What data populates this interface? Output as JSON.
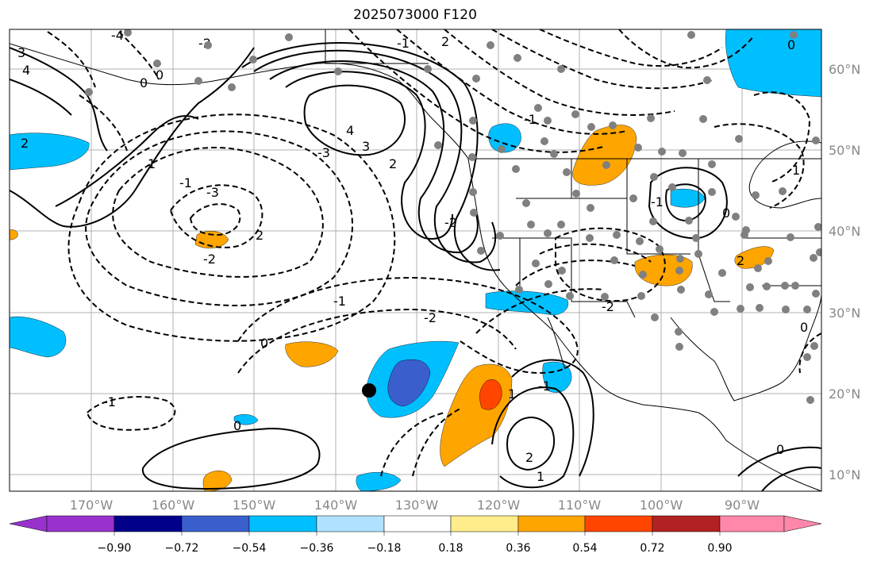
{
  "title": "2025073000 F120",
  "map": {
    "extent_lon": [
      -180,
      -80
    ],
    "extent_lat": [
      8,
      65
    ],
    "lat_labels": [
      "10°N",
      "20°N",
      "30°N",
      "40°N",
      "50°N",
      "60°N"
    ],
    "lon_labels": [
      "170°W",
      "160°W",
      "150°W",
      "140°W",
      "130°W",
      "120°W",
      "110°W",
      "100°W",
      "90°W"
    ],
    "contour_labels": [
      "3",
      "4",
      "0",
      "2",
      "1",
      "-1",
      "-2",
      "-3",
      "-4",
      "4",
      "3",
      "2",
      "-2",
      "-1",
      "0",
      "-3",
      "2",
      "-2",
      "-1",
      "0",
      "1",
      "2",
      "-2",
      "-1",
      "0",
      "1",
      "-1",
      "0",
      "-2",
      "-1",
      "0",
      "0",
      "2",
      "2",
      "-1",
      "0",
      "1"
    ],
    "station_marker_color": "#808080",
    "storm_marker_color": "#000000"
  },
  "colorbar": {
    "ticks": [
      "−0.90",
      "−0.72",
      "−0.54",
      "−0.36",
      "−0.18",
      "0.18",
      "0.36",
      "0.54",
      "0.72",
      "0.90"
    ],
    "colors": [
      "#9932cc",
      "#00008b",
      "#3a5fcd",
      "#00bfff",
      "#b0e2ff",
      "#ffffff",
      "#ffec8b",
      "#ffa500",
      "#ff4500",
      "#b22222",
      "#ff88aa"
    ]
  }
}
